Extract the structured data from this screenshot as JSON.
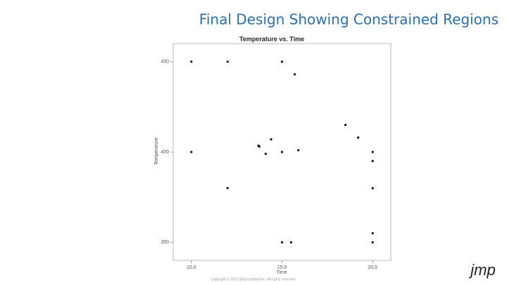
{
  "slide": {
    "title": "Final Design Showing Constrained Regions",
    "footer": "Copyright © 2013 SAS Institute Inc. All rights reserved.",
    "logo": "jmp"
  },
  "chart_data": {
    "type": "scatter",
    "title": "Temperature vs. Time",
    "x_label": "Time",
    "y_label": "Temperature",
    "x": [
      10,
      12,
      15,
      15.7,
      18.5,
      19.2,
      14.4,
      13.7,
      13.75,
      14.1,
      15,
      15.9,
      20,
      20,
      10,
      12,
      20,
      20,
      15,
      15.5,
      20
    ],
    "values": [
      450,
      450,
      450,
      443,
      415,
      408,
      407,
      403.5,
      403,
      399,
      400,
      401,
      400,
      395,
      400,
      380,
      380,
      355,
      350,
      350,
      350
    ],
    "color": "#111111",
    "xlim": [
      9,
      21
    ],
    "ylim": [
      340,
      460
    ],
    "xticks": [
      {
        "value": 10,
        "label": "10.0"
      },
      {
        "value": 15,
        "label": "15.0"
      },
      {
        "value": 20,
        "label": "20.0"
      }
    ],
    "yticks": [
      350,
      400,
      450
    ],
    "grid": false
  }
}
